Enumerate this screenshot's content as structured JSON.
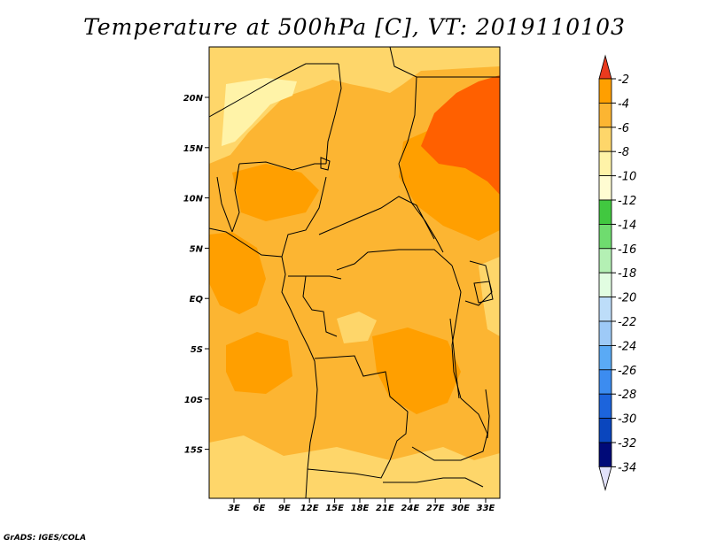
{
  "title": "Temperature at 500hPa [C], VT: 2019110103",
  "credit": "GrADS: IGES/COLA",
  "map": {
    "lon_labels": [
      "3E",
      "6E",
      "9E",
      "12E",
      "15E",
      "18E",
      "21E",
      "24E",
      "27E",
      "30E",
      "33E"
    ],
    "lat_labels": [
      "20N",
      "15N",
      "10N",
      "5N",
      "EQ",
      "5S",
      "10S",
      "15S"
    ]
  },
  "colorbar": {
    "labels": [
      "-2",
      "-4",
      "-6",
      "-8",
      "-10",
      "-12",
      "-14",
      "-16",
      "-18",
      "-20",
      "-22",
      "-24",
      "-26",
      "-28",
      "-30",
      "-32",
      "-34"
    ],
    "colors": [
      "#ff6000",
      "#ff9f00",
      "#fcb532",
      "#fed66a",
      "#fff3a8",
      "#fffcd2",
      "#41c840",
      "#6fdc6f",
      "#b4f0b4",
      "#e1fde1",
      "#bdddf9",
      "#9ecaf7",
      "#5aaaf5",
      "#3c8cf0",
      "#1c64dc",
      "#0a46be",
      "#000a78"
    ],
    "top_arrow_color": "#e93a1e",
    "bottom_arrow_color": "#e1e1fa"
  }
}
